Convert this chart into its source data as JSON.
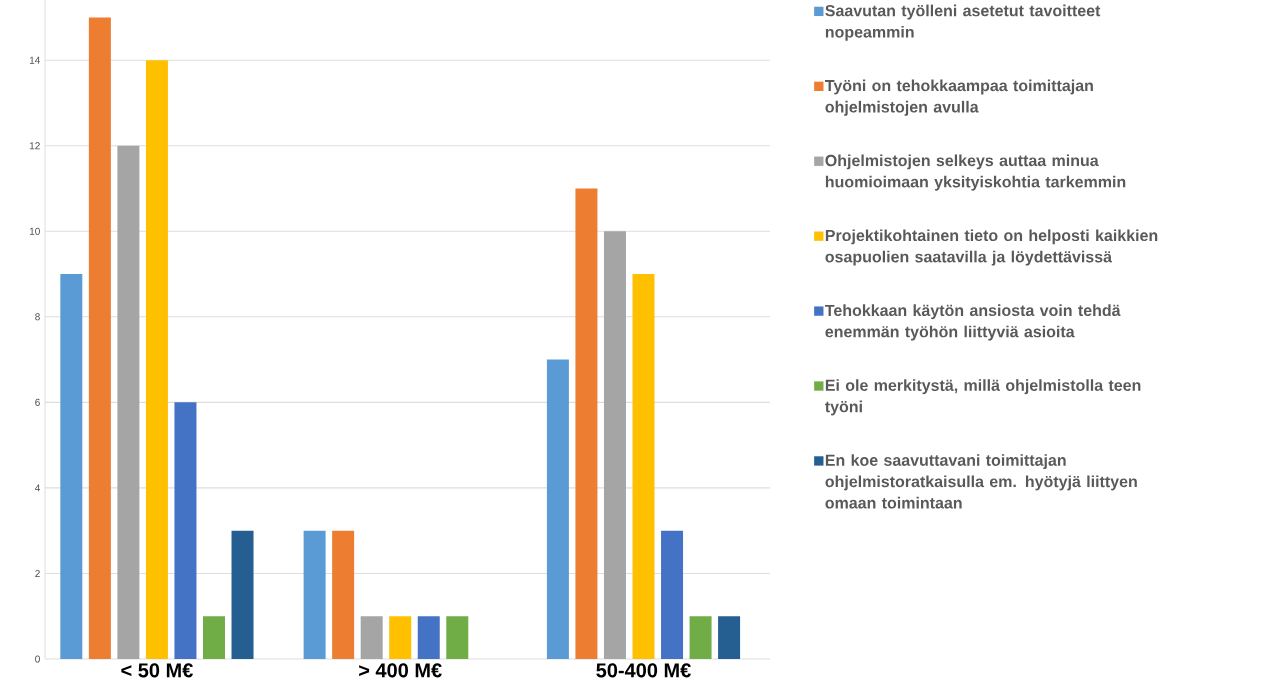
{
  "chart_data": {
    "type": "bar",
    "categories": [
      "< 50 M€",
      "> 400 M€",
      "50-400 M€"
    ],
    "series": [
      {
        "name": "Saavutan työlleni asetetut tavoitteet nopeammin",
        "color": "#5b9bd5",
        "values": [
          9,
          3,
          7
        ]
      },
      {
        "name": "Työni on tehokkaampaa toimittajan ohjelmistojen avulla",
        "color": "#ed7d31",
        "values": [
          15,
          3,
          11
        ]
      },
      {
        "name": "Ohjelmistojen selkeys auttaa minua huomioimaan yksityiskohtia tarkemmin",
        "color": "#a5a5a5",
        "values": [
          12,
          1,
          10
        ]
      },
      {
        "name": "Projektikohtainen tieto on helposti kaikkien osapuolien saatavilla ja löydettävissä",
        "color": "#ffc000",
        "values": [
          14,
          1,
          9
        ]
      },
      {
        "name": "Tehokkaan käytön ansiosta voin tehdä enemmän työhön liittyviä asioita",
        "color": "#4472c4",
        "values": [
          6,
          1,
          3
        ]
      },
      {
        "name": "Ei ole merkitystä, millä ohjelmistolla teen työni",
        "color": "#70ad47",
        "values": [
          1,
          1,
          1
        ]
      },
      {
        "name": "En koe saavuttavani toimittajan ohjelmistoratkaisulla em. hyötyjä liittyen omaan toimintaan",
        "color": "#255e91",
        "values": [
          3,
          null,
          1
        ]
      }
    ],
    "ylim": [
      0,
      15.4
    ],
    "yticks": [
      0,
      2,
      4,
      6,
      8,
      10,
      12,
      14
    ],
    "grid": "y",
    "legend": "right"
  }
}
